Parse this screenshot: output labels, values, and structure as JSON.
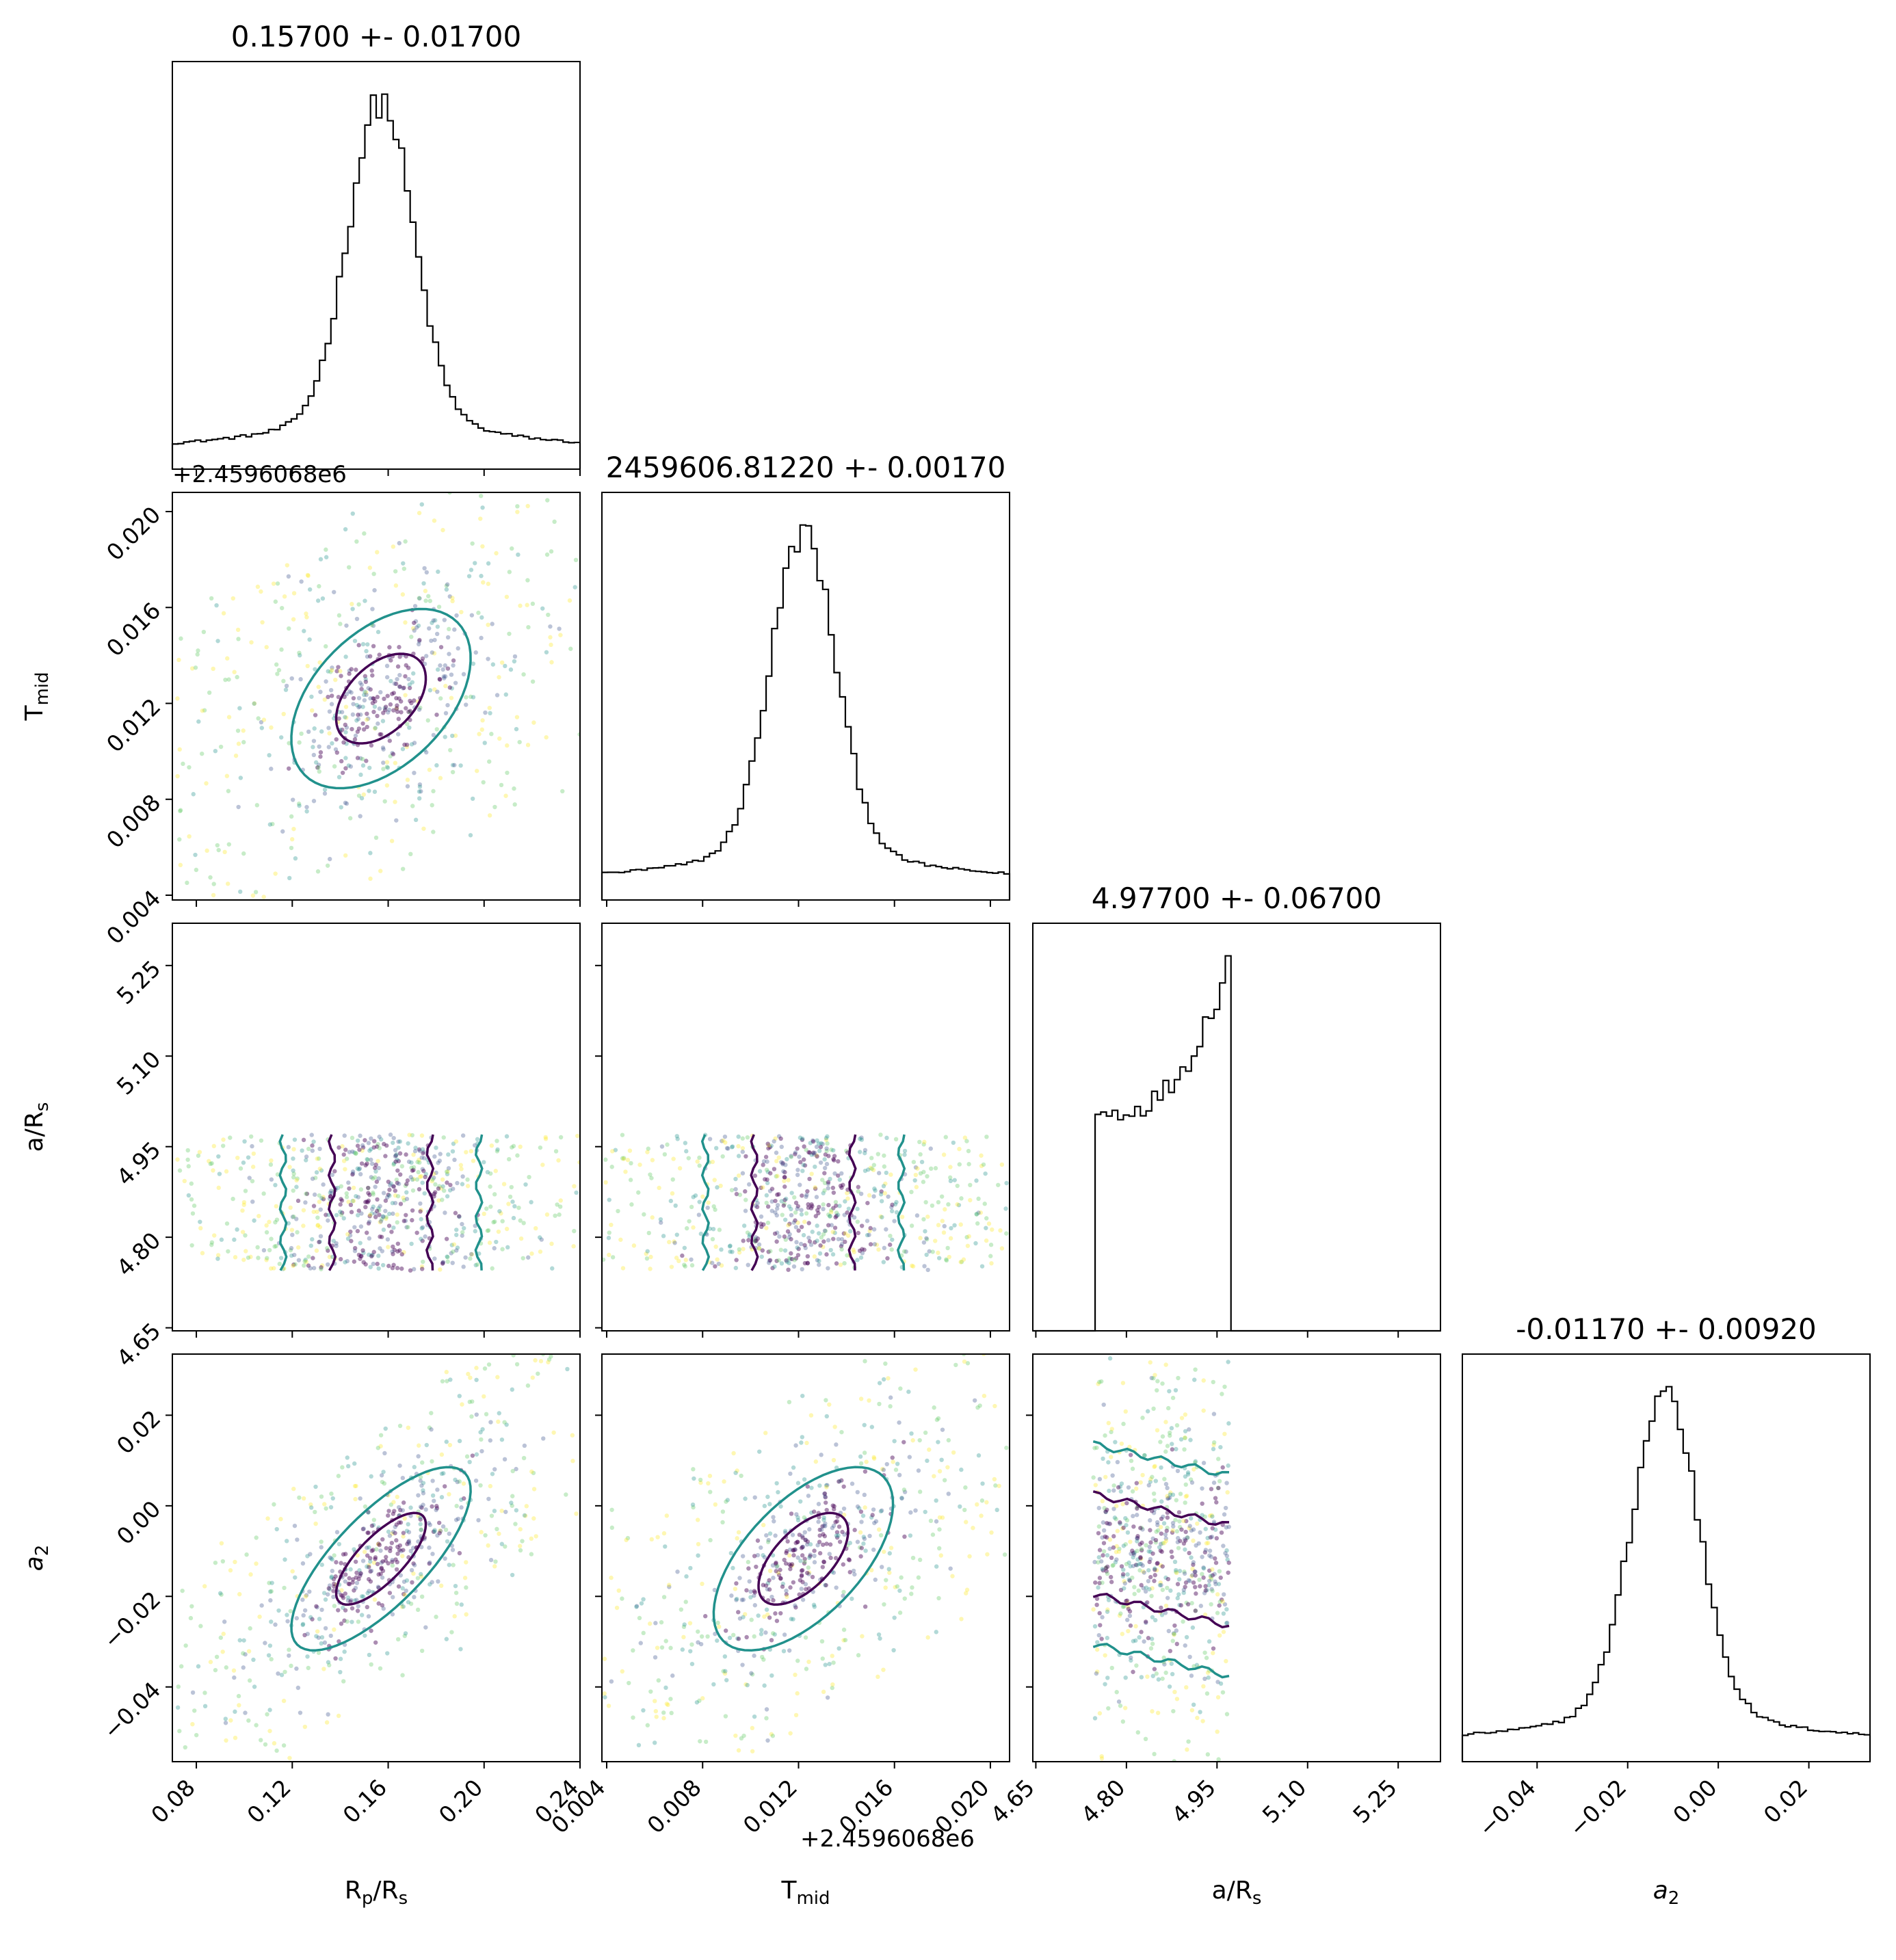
{
  "chart_data": {
    "type": "corner",
    "parameters": [
      {
        "key": "rp",
        "label": "R",
        "sub": "p",
        "label_tail": "/R",
        "tail_sub": "s",
        "range": [
          0.07,
          0.24
        ],
        "ticks": [
          "0.08",
          "0.12",
          "0.16",
          "0.20",
          "0.24"
        ],
        "tick_values": [
          0.08,
          0.12,
          0.16,
          0.2,
          0.24
        ],
        "offset_label": "",
        "title": "0.15700 +- 0.01700",
        "mean": 0.157,
        "sigma": 0.017
      },
      {
        "key": "tmid",
        "label": "T",
        "sub": "mid",
        "label_tail": "",
        "tail_sub": "",
        "range": [
          0.0038,
          0.0208
        ],
        "ticks": [
          "0.004",
          "0.008",
          "0.012",
          "0.016",
          "0.020"
        ],
        "tick_values": [
          0.004,
          0.008,
          0.012,
          0.016,
          0.02
        ],
        "offset_label": "+2.4596068e6",
        "title": "2459606.81220 +- 0.00170",
        "mean": 0.0122,
        "sigma": 0.0017
      },
      {
        "key": "ars",
        "label": "a/R",
        "sub": "s",
        "label_tail": "",
        "tail_sub": "",
        "range": [
          4.645,
          5.32
        ],
        "ticks": [
          "4.65",
          "4.80",
          "4.95",
          "5.10",
          "5.25"
        ],
        "tick_values": [
          4.65,
          4.8,
          4.95,
          5.1,
          5.25
        ],
        "offset_label": "",
        "title": "4.97700 +- 0.06700",
        "mean": 4.977,
        "sigma": 0.067
      },
      {
        "key": "a2",
        "label": "a",
        "sub": "2",
        "label_tail": "",
        "tail_sub": "",
        "label_italic": true,
        "range": [
          -0.0565,
          0.0335
        ],
        "ticks": [
          "−0.04",
          "−0.02",
          "0.00",
          "0.02"
        ],
        "tick_values": [
          -0.04,
          -0.02,
          0.0,
          0.02
        ],
        "offset_label": "",
        "title": "-0.01170 +- 0.00920",
        "mean": -0.0117,
        "sigma": 0.0092
      }
    ],
    "scatter_colors": [
      "#440154",
      "#3b528b",
      "#21918c",
      "#5ec962",
      "#fde725"
    ],
    "contour_colors": [
      "#440154",
      "#21918c",
      "#fde725"
    ],
    "histogram_color": "#000000"
  }
}
